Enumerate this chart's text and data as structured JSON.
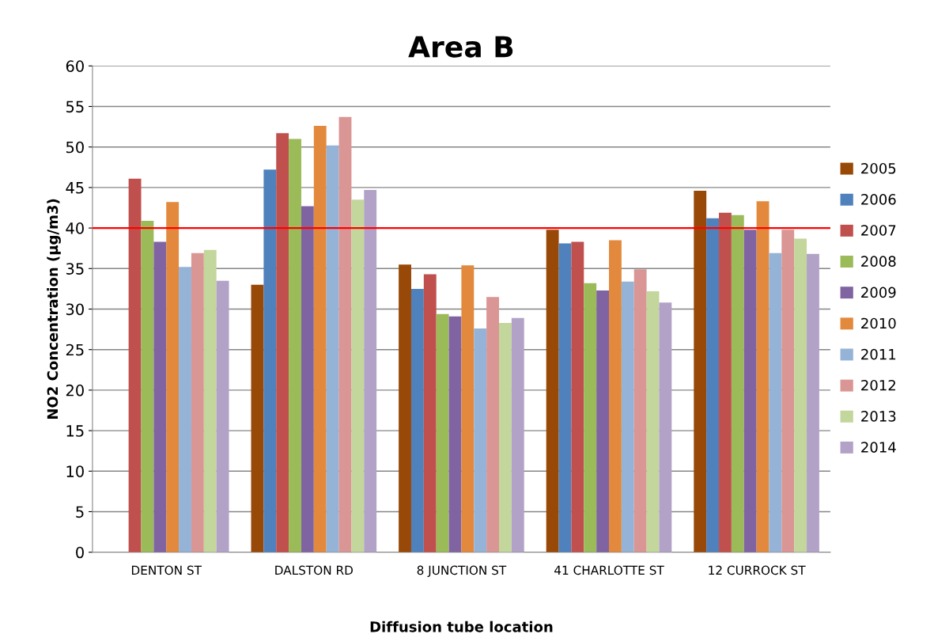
{
  "chart_data": {
    "type": "bar",
    "title": "Area B",
    "xlabel": "Diffusion tube location",
    "ylabel": "NO2 Concentration (µg/m3)",
    "categories": [
      "DENTON ST",
      "DALSTON RD",
      "8 JUNCTION ST",
      "41 CHARLOTTE ST",
      "12 CURROCK ST"
    ],
    "series": [
      {
        "name": "2005",
        "color": "#984807",
        "values": [
          null,
          33.0,
          35.5,
          39.8,
          44.6
        ]
      },
      {
        "name": "2006",
        "color": "#4f81bd",
        "values": [
          null,
          47.2,
          32.5,
          38.1,
          41.2
        ]
      },
      {
        "name": "2007",
        "color": "#c0504d",
        "values": [
          46.1,
          51.7,
          34.3,
          38.3,
          41.9
        ]
      },
      {
        "name": "2008",
        "color": "#9bbb59",
        "values": [
          40.9,
          51.0,
          29.4,
          33.2,
          41.6
        ]
      },
      {
        "name": "2009",
        "color": "#8064a2",
        "values": [
          38.3,
          42.7,
          29.1,
          32.3,
          39.8
        ]
      },
      {
        "name": "2010",
        "color": "#e3893d",
        "values": [
          43.2,
          52.6,
          35.4,
          38.5,
          43.3
        ]
      },
      {
        "name": "2011",
        "color": "#95b3d7",
        "values": [
          35.2,
          50.2,
          27.6,
          33.4,
          36.9
        ]
      },
      {
        "name": "2012",
        "color": "#d99694",
        "values": [
          36.9,
          53.7,
          31.5,
          34.9,
          39.8
        ]
      },
      {
        "name": "2013",
        "color": "#c3d69b",
        "values": [
          37.3,
          43.5,
          28.3,
          32.2,
          38.7
        ]
      },
      {
        "name": "2014",
        "color": "#b3a2c7",
        "values": [
          33.5,
          44.7,
          28.9,
          30.8,
          36.8
        ]
      }
    ],
    "ylim": [
      0,
      60
    ],
    "yticks": [
      0,
      5,
      10,
      15,
      20,
      25,
      30,
      35,
      40,
      45,
      50,
      55,
      60
    ],
    "ref_lines": [
      {
        "axis": "y",
        "value": 40,
        "color": "#ff0000"
      }
    ],
    "grid": "y",
    "legend": "right"
  }
}
